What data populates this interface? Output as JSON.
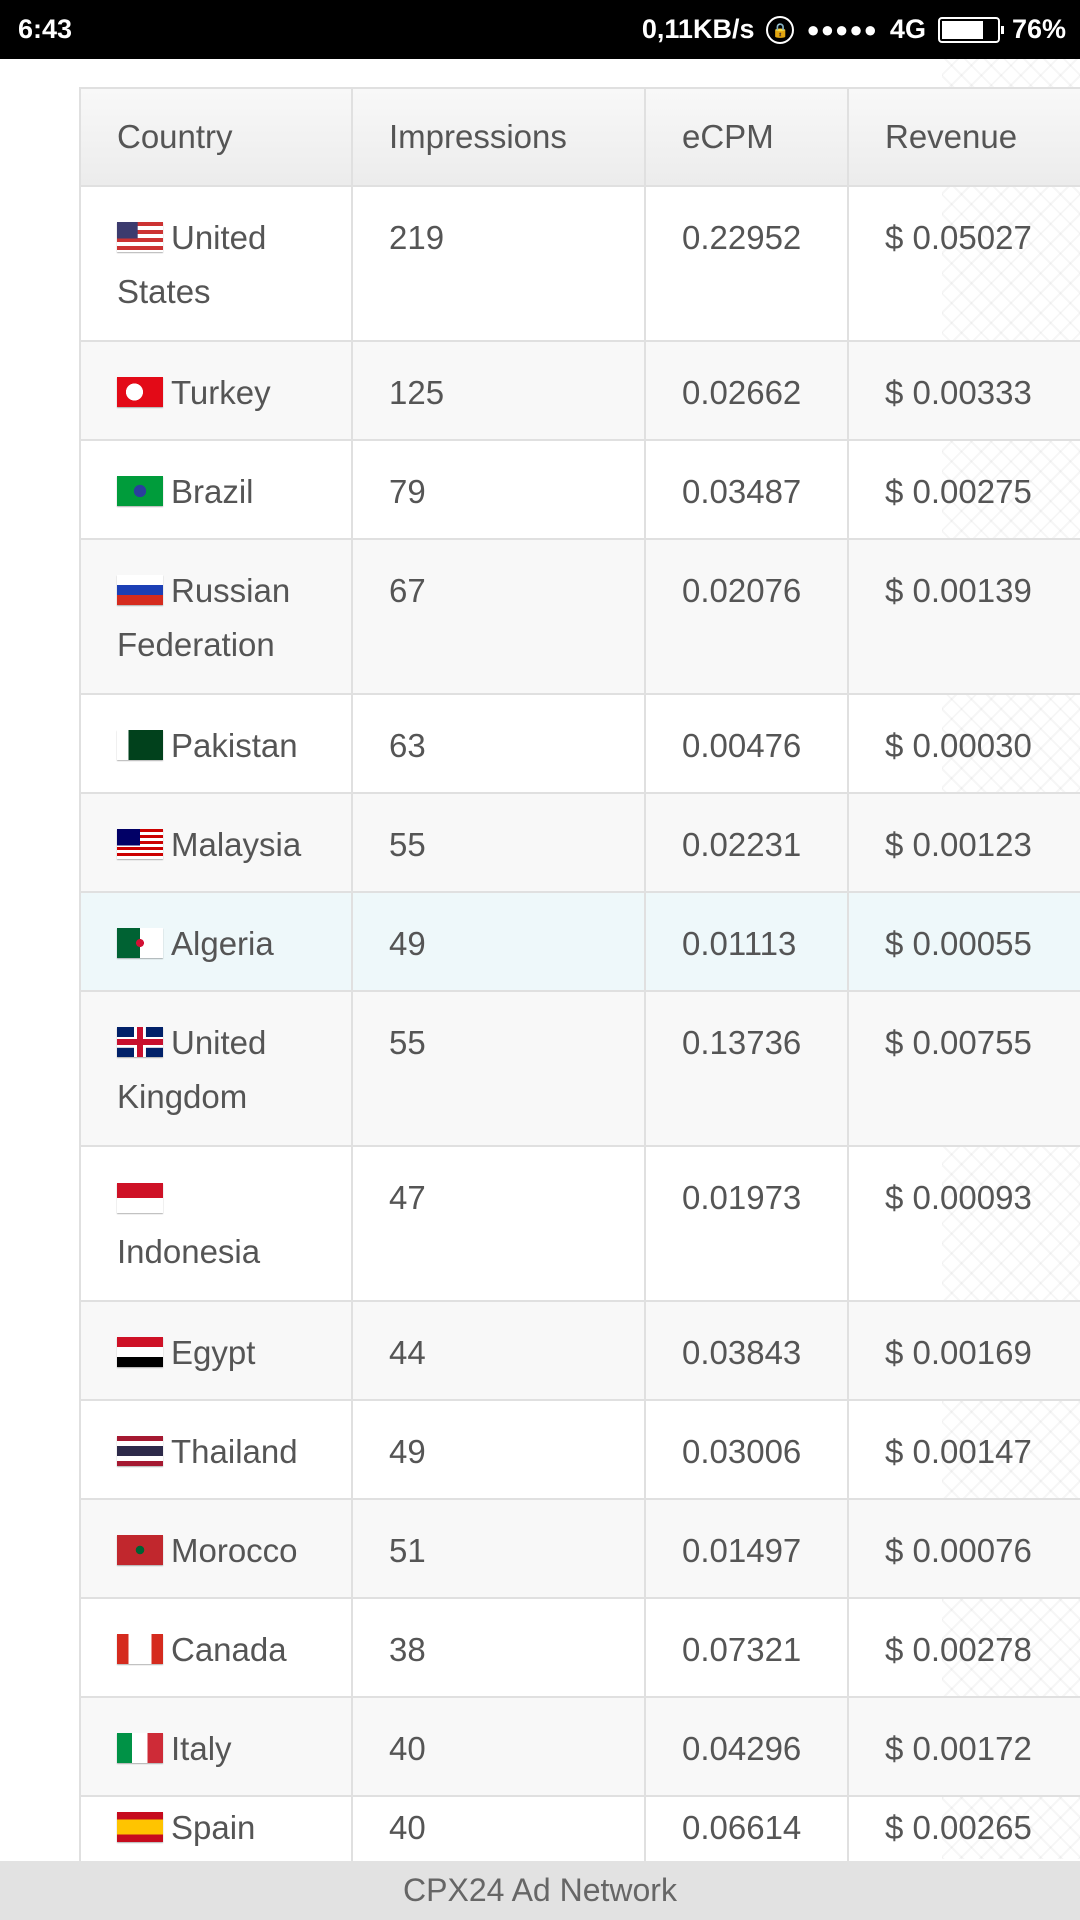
{
  "status_bar": {
    "time": "6:43",
    "net_speed": "0,11KB/s",
    "network": "4G",
    "battery": "76%",
    "battery_level": 0.76,
    "signal_dots": "●●●●●"
  },
  "table": {
    "headers": [
      "Country",
      "Impressions",
      "eCPM",
      "Revenue"
    ],
    "rows": [
      {
        "country": "United States",
        "flag": "flag-us",
        "impressions": "219",
        "ecpm": "0.22952",
        "revenue": "$ 0.05027"
      },
      {
        "country": "Turkey",
        "flag": "flag-tr",
        "impressions": "125",
        "ecpm": "0.02662",
        "revenue": "$ 0.00333"
      },
      {
        "country": "Brazil",
        "flag": "flag-br",
        "impressions": "79",
        "ecpm": "0.03487",
        "revenue": "$ 0.00275"
      },
      {
        "country": "Russian Federation",
        "flag": "flag-ru",
        "impressions": "67",
        "ecpm": "0.02076",
        "revenue": "$ 0.00139"
      },
      {
        "country": "Pakistan",
        "flag": "flag-pk",
        "impressions": "63",
        "ecpm": "0.00476",
        "revenue": "$ 0.00030"
      },
      {
        "country": "Malaysia",
        "flag": "flag-my",
        "impressions": "55",
        "ecpm": "0.02231",
        "revenue": "$ 0.00123"
      },
      {
        "country": "Algeria",
        "flag": "flag-dz",
        "impressions": "49",
        "ecpm": "0.01113",
        "revenue": "$ 0.00055",
        "highlighted": true
      },
      {
        "country": "United Kingdom",
        "flag": "flag-gb",
        "impressions": "55",
        "ecpm": "0.13736",
        "revenue": "$ 0.00755"
      },
      {
        "country": "Indonesia",
        "flag": "flag-id",
        "impressions": "47",
        "ecpm": "0.01973",
        "revenue": "$ 0.00093"
      },
      {
        "country": "Egypt",
        "flag": "flag-eg",
        "impressions": "44",
        "ecpm": "0.03843",
        "revenue": "$ 0.00169"
      },
      {
        "country": "Thailand",
        "flag": "flag-th",
        "impressions": "49",
        "ecpm": "0.03006",
        "revenue": "$ 0.00147"
      },
      {
        "country": "Morocco",
        "flag": "flag-ma",
        "impressions": "51",
        "ecpm": "0.01497",
        "revenue": "$ 0.00076"
      },
      {
        "country": "Canada",
        "flag": "flag-ca",
        "impressions": "38",
        "ecpm": "0.07321",
        "revenue": "$ 0.00278"
      },
      {
        "country": "Italy",
        "flag": "flag-it",
        "impressions": "40",
        "ecpm": "0.04296",
        "revenue": "$ 0.00172"
      },
      {
        "country": "Spain",
        "flag": "flag-es",
        "impressions": "40",
        "ecpm": "0.06614",
        "revenue": "$ 0.00265"
      }
    ]
  },
  "footer": {
    "title": "CPX24 Ad Network"
  }
}
